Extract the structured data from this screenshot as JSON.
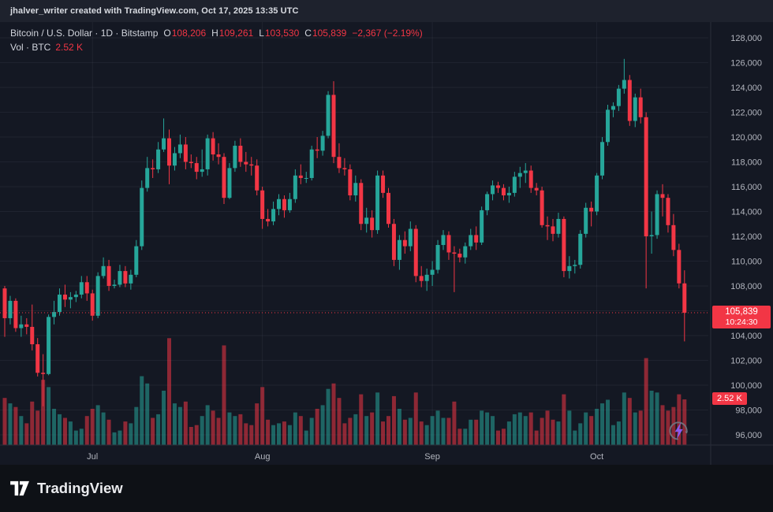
{
  "topbar": {
    "attribution": "jhalver_writer created with TradingView.com, Oct 17, 2025 13:35 UTC"
  },
  "legend": {
    "symbol_line": "Bitcoin / U.S. Dollar · 1D · Bitstamp",
    "ohlc": {
      "o_label": "O",
      "o": "108,206",
      "h_label": "H",
      "h": "109,261",
      "l_label": "L",
      "l": "103,530",
      "c_label": "C",
      "c": "105,839"
    },
    "change": "−2,367 (−2.19%)",
    "vol_line": "Vol · BTC",
    "vol_value": "2.52 K"
  },
  "badges": {
    "last_price": "105,839",
    "countdown": "10:24:30",
    "volume": "2.52 K"
  },
  "footer": {
    "brand": "TradingView"
  },
  "colors": {
    "background": "#141823",
    "topbar_bg": "#1e222d",
    "footer_bg": "#0e1116",
    "up": "#26a69a",
    "down": "#f23645",
    "vol_up": "rgba(38,166,154,0.55)",
    "vol_down": "rgba(242,54,69,0.55)",
    "grid": "rgba(240,243,250,0.055)",
    "axis_text": "#b2b5be",
    "separator": "#2a2e39",
    "badge_bg": "#f23645",
    "bolt": "#8b5cf6"
  },
  "chart_data": {
    "type": "candlestick",
    "title": "Bitcoin / U.S. Dollar, 1D, Bitstamp",
    "price_axis": {
      "min": 96000,
      "max": 128000,
      "step": 2000,
      "hidden_tick": 106000
    },
    "x_ticks": [
      {
        "label": "Jul",
        "index": 16
      },
      {
        "label": "Aug",
        "index": 47
      },
      {
        "label": "Sep",
        "index": 78
      },
      {
        "label": "Oct",
        "index": 108
      }
    ],
    "last": {
      "open": 108206,
      "high": 109261,
      "low": 103530,
      "close": 105839,
      "change": -2367,
      "change_pct": -2.19,
      "volume_k": 2.52
    },
    "columns": [
      "date",
      "open",
      "high",
      "low",
      "close",
      "volume_k_btc"
    ],
    "candles": [
      [
        "Jun 15",
        107800,
        108000,
        103900,
        105400,
        2.6
      ],
      [
        "Jun 16",
        105400,
        107200,
        104900,
        106800,
        2.3
      ],
      [
        "Jun 17",
        106800,
        107000,
        104300,
        104600,
        2.1
      ],
      [
        "Jun 18",
        104600,
        105600,
        103900,
        104900,
        1.6
      ],
      [
        "Jun 19",
        104900,
        105400,
        104100,
        104700,
        1.2
      ],
      [
        "Jun 20",
        104700,
        106500,
        102800,
        103300,
        2.4
      ],
      [
        "Jun 21",
        103300,
        103800,
        100700,
        101000,
        1.9
      ],
      [
        "Jun 22",
        101000,
        102500,
        98300,
        100900,
        3.6
      ],
      [
        "Jun 23",
        100900,
        105700,
        100800,
        105500,
        3.2
      ],
      [
        "Jun 24",
        105500,
        106800,
        104900,
        105900,
        2.0
      ],
      [
        "Jun 25",
        105900,
        107800,
        105600,
        107300,
        1.7
      ],
      [
        "Jun 26",
        107300,
        108100,
        106300,
        106900,
        1.5
      ],
      [
        "Jun 27",
        106900,
        107500,
        106200,
        107100,
        1.3
      ],
      [
        "Jun 28",
        107100,
        107600,
        106700,
        107300,
        0.8
      ],
      [
        "Jun 29",
        107300,
        108800,
        107000,
        108300,
        0.9
      ],
      [
        "Jun 30",
        108300,
        108800,
        106800,
        107400,
        1.6
      ],
      [
        "Jul 1",
        107400,
        107700,
        105200,
        105600,
        2.0
      ],
      [
        "Jul 2",
        105600,
        109100,
        105400,
        108800,
        2.2
      ],
      [
        "Jul 3",
        108800,
        110300,
        108600,
        109600,
        1.8
      ],
      [
        "Jul 4",
        109600,
        110100,
        107600,
        108000,
        1.4
      ],
      [
        "Jul 5",
        108000,
        108500,
        107800,
        108100,
        0.7
      ],
      [
        "Jul 6",
        108100,
        109700,
        107900,
        109200,
        0.8
      ],
      [
        "Jul 7",
        109200,
        109600,
        107900,
        108200,
        1.3
      ],
      [
        "Jul 8",
        108200,
        109300,
        107700,
        108900,
        1.2
      ],
      [
        "Jul 9",
        108900,
        111700,
        108700,
        111200,
        2.1
      ],
      [
        "Jul 10",
        111200,
        116500,
        110900,
        115900,
        3.8
      ],
      [
        "Jul 11",
        115900,
        118400,
        115600,
        117500,
        3.4
      ],
      [
        "Jul 12",
        117500,
        118200,
        116700,
        117400,
        1.5
      ],
      [
        "Jul 13",
        117400,
        119600,
        117100,
        119000,
        1.7
      ],
      [
        "Jul 14",
        119000,
        121500,
        118800,
        119900,
        3.0
      ],
      [
        "Jul 15",
        119900,
        120600,
        116200,
        117700,
        5.9
      ],
      [
        "Jul 16",
        117700,
        119200,
        117300,
        118700,
        2.3
      ],
      [
        "Jul 17",
        118700,
        120200,
        118300,
        119400,
        2.1
      ],
      [
        "Jul 18",
        119400,
        120000,
        117400,
        118000,
        2.4
      ],
      [
        "Jul 19",
        118000,
        118600,
        117500,
        117900,
        1.0
      ],
      [
        "Jul 20",
        117900,
        118400,
        116600,
        117200,
        1.1
      ],
      [
        "Jul 21",
        117200,
        119000,
        116800,
        117400,
        1.6
      ],
      [
        "Jul 22",
        117400,
        120200,
        116900,
        119900,
        2.2
      ],
      [
        "Jul 23",
        119900,
        120400,
        118100,
        118600,
        1.9
      ],
      [
        "Jul 24",
        118600,
        119500,
        117800,
        118400,
        1.5
      ],
      [
        "Jul 25",
        118400,
        118700,
        114600,
        115100,
        5.5
      ],
      [
        "Jul 26",
        115100,
        117900,
        115000,
        117500,
        1.8
      ],
      [
        "Jul 27",
        117500,
        119700,
        117200,
        119300,
        1.6
      ],
      [
        "Jul 28",
        119300,
        119900,
        117600,
        118000,
        1.7
      ],
      [
        "Jul 29",
        118000,
        118800,
        117200,
        117800,
        1.2
      ],
      [
        "Jul 30",
        117800,
        118400,
        116900,
        117700,
        1.1
      ],
      [
        "Jul 31",
        117700,
        118200,
        115300,
        115700,
        2.3
      ],
      [
        "Aug 1",
        115700,
        116000,
        112600,
        113400,
        3.2
      ],
      [
        "Aug 2",
        113400,
        114200,
        112800,
        113200,
        1.4
      ],
      [
        "Aug 3",
        113200,
        114800,
        112900,
        114200,
        1.1
      ],
      [
        "Aug 4",
        114200,
        115400,
        113700,
        115000,
        1.2
      ],
      [
        "Aug 5",
        115000,
        115300,
        113500,
        114100,
        1.3
      ],
      [
        "Aug 6",
        114100,
        115500,
        113900,
        115000,
        1.1
      ],
      [
        "Aug 7",
        115000,
        117400,
        114700,
        116900,
        1.8
      ],
      [
        "Aug 8",
        116900,
        117800,
        116200,
        116700,
        1.6
      ],
      [
        "Aug 9",
        116700,
        117200,
        116300,
        116700,
        0.8
      ],
      [
        "Aug 10",
        116700,
        119300,
        116500,
        119000,
        1.5
      ],
      [
        "Aug 11",
        119000,
        120000,
        118300,
        118900,
        2.0
      ],
      [
        "Aug 12",
        118900,
        120500,
        118500,
        120100,
        2.2
      ],
      [
        "Aug 13",
        120100,
        123700,
        119900,
        123400,
        3.1
      ],
      [
        "Aug 14",
        123400,
        124500,
        117900,
        118400,
        3.4
      ],
      [
        "Aug 15",
        118400,
        119500,
        117100,
        117500,
        2.6
      ],
      [
        "Aug 16",
        117500,
        118300,
        116900,
        117400,
        1.2
      ],
      [
        "Aug 17",
        117400,
        117800,
        114900,
        115300,
        1.5
      ],
      [
        "Aug 18",
        115300,
        116900,
        114800,
        116300,
        1.7
      ],
      [
        "Aug 19",
        116300,
        116600,
        112500,
        113000,
        2.8
      ],
      [
        "Aug 20",
        113000,
        114300,
        112300,
        113500,
        1.6
      ],
      [
        "Aug 21",
        113500,
        114100,
        111900,
        112500,
        1.8
      ],
      [
        "Aug 22",
        112500,
        117300,
        112200,
        116900,
        2.9
      ],
      [
        "Aug 23",
        116900,
        117300,
        115100,
        115500,
        1.3
      ],
      [
        "Aug 24",
        115500,
        115900,
        112700,
        113000,
        1.6
      ],
      [
        "Aug 25",
        113000,
        113400,
        109600,
        110100,
        2.7
      ],
      [
        "Aug 26",
        110100,
        112100,
        109300,
        111700,
        2.0
      ],
      [
        "Aug 27",
        111700,
        112400,
        110600,
        111200,
        1.4
      ],
      [
        "Aug 28",
        111200,
        113200,
        110800,
        112600,
        1.5
      ],
      [
        "Aug 29",
        112600,
        112900,
        108300,
        108800,
        2.9
      ],
      [
        "Aug 30",
        108800,
        109600,
        107900,
        108400,
        1.3
      ],
      [
        "Aug 31",
        108400,
        109400,
        107600,
        108900,
        1.1
      ],
      [
        "Sep 1",
        108900,
        110000,
        108000,
        109300,
        1.6
      ],
      [
        "Sep 2",
        109300,
        111700,
        109000,
        111300,
        1.9
      ],
      [
        "Sep 3",
        111300,
        112500,
        110900,
        112100,
        1.5
      ],
      [
        "Sep 4",
        112100,
        112400,
        110100,
        110700,
        1.5
      ],
      [
        "Sep 5",
        110700,
        111200,
        107500,
        110600,
        2.4
      ],
      [
        "Sep 6",
        110600,
        111000,
        109900,
        110300,
        0.9
      ],
      [
        "Sep 7",
        110300,
        111500,
        109800,
        111200,
        0.9
      ],
      [
        "Sep 8",
        111200,
        112600,
        110900,
        112100,
        1.4
      ],
      [
        "Sep 9",
        112100,
        112800,
        110900,
        111500,
        1.4
      ],
      [
        "Sep 10",
        111500,
        114400,
        111300,
        114100,
        1.9
      ],
      [
        "Sep 11",
        114100,
        115600,
        113700,
        115400,
        1.8
      ],
      [
        "Sep 12",
        115400,
        116500,
        114900,
        116100,
        1.6
      ],
      [
        "Sep 13",
        116100,
        116400,
        115500,
        115900,
        0.8
      ],
      [
        "Sep 14",
        115900,
        116200,
        114900,
        115300,
        0.9
      ],
      [
        "Sep 15",
        115300,
        116000,
        114700,
        115500,
        1.3
      ],
      [
        "Sep 16",
        115500,
        117200,
        115200,
        116800,
        1.7
      ],
      [
        "Sep 17",
        116800,
        117600,
        115900,
        117100,
        1.8
      ],
      [
        "Sep 18",
        117100,
        117900,
        116300,
        117300,
        1.6
      ],
      [
        "Sep 19",
        117300,
        117700,
        115500,
        115900,
        1.8
      ],
      [
        "Sep 20",
        115900,
        116300,
        115300,
        115700,
        0.8
      ],
      [
        "Sep 21",
        115700,
        116000,
        112700,
        112900,
        1.5
      ],
      [
        "Sep 22",
        112900,
        113600,
        111700,
        112800,
        1.9
      ],
      [
        "Sep 23",
        112800,
        113400,
        111600,
        112200,
        1.4
      ],
      [
        "Sep 24",
        112200,
        113900,
        111900,
        113400,
        1.3
      ],
      [
        "Sep 25",
        113400,
        113600,
        108700,
        109200,
        2.8
      ],
      [
        "Sep 26",
        109200,
        110400,
        108600,
        109600,
        1.9
      ],
      [
        "Sep 27",
        109600,
        110100,
        109000,
        109700,
        0.8
      ],
      [
        "Sep 28",
        109700,
        112500,
        109400,
        112200,
        1.2
      ],
      [
        "Sep 29",
        112200,
        114700,
        111900,
        114300,
        1.8
      ],
      [
        "Sep 30",
        114300,
        114800,
        112800,
        114000,
        1.6
      ],
      [
        "Oct 1",
        114000,
        117100,
        113700,
        116900,
        2.0
      ],
      [
        "Oct 2",
        116900,
        120000,
        116600,
        119600,
        2.3
      ],
      [
        "Oct 3",
        119600,
        122600,
        119300,
        122200,
        2.5
      ],
      [
        "Oct 4",
        122200,
        122800,
        121600,
        122500,
        1.1
      ],
      [
        "Oct 5",
        122500,
        124200,
        122100,
        123900,
        1.3
      ],
      [
        "Oct 6",
        123900,
        126300,
        123500,
        124600,
        2.9
      ],
      [
        "Oct 7",
        124600,
        125000,
        120900,
        121300,
        2.6
      ],
      [
        "Oct 8",
        121300,
        123500,
        120800,
        123200,
        1.8
      ],
      [
        "Oct 9",
        123200,
        123900,
        121100,
        121600,
        1.9
      ],
      [
        "Oct 10",
        121600,
        122000,
        107800,
        112000,
        4.8
      ],
      [
        "Oct 11",
        112000,
        114000,
        110600,
        112100,
        3.0
      ],
      [
        "Oct 12",
        112100,
        115700,
        111800,
        115400,
        2.9
      ],
      [
        "Oct 13",
        115400,
        116200,
        113600,
        115100,
        2.2
      ],
      [
        "Oct 14",
        115100,
        115400,
        112300,
        112900,
        1.9
      ],
      [
        "Oct 15",
        112900,
        113800,
        110400,
        110900,
        2.1
      ],
      [
        "Oct 16",
        110900,
        111400,
        107800,
        108206,
        2.8
      ],
      [
        "Oct 17",
        108206,
        109261,
        103530,
        105839,
        2.52
      ]
    ]
  }
}
